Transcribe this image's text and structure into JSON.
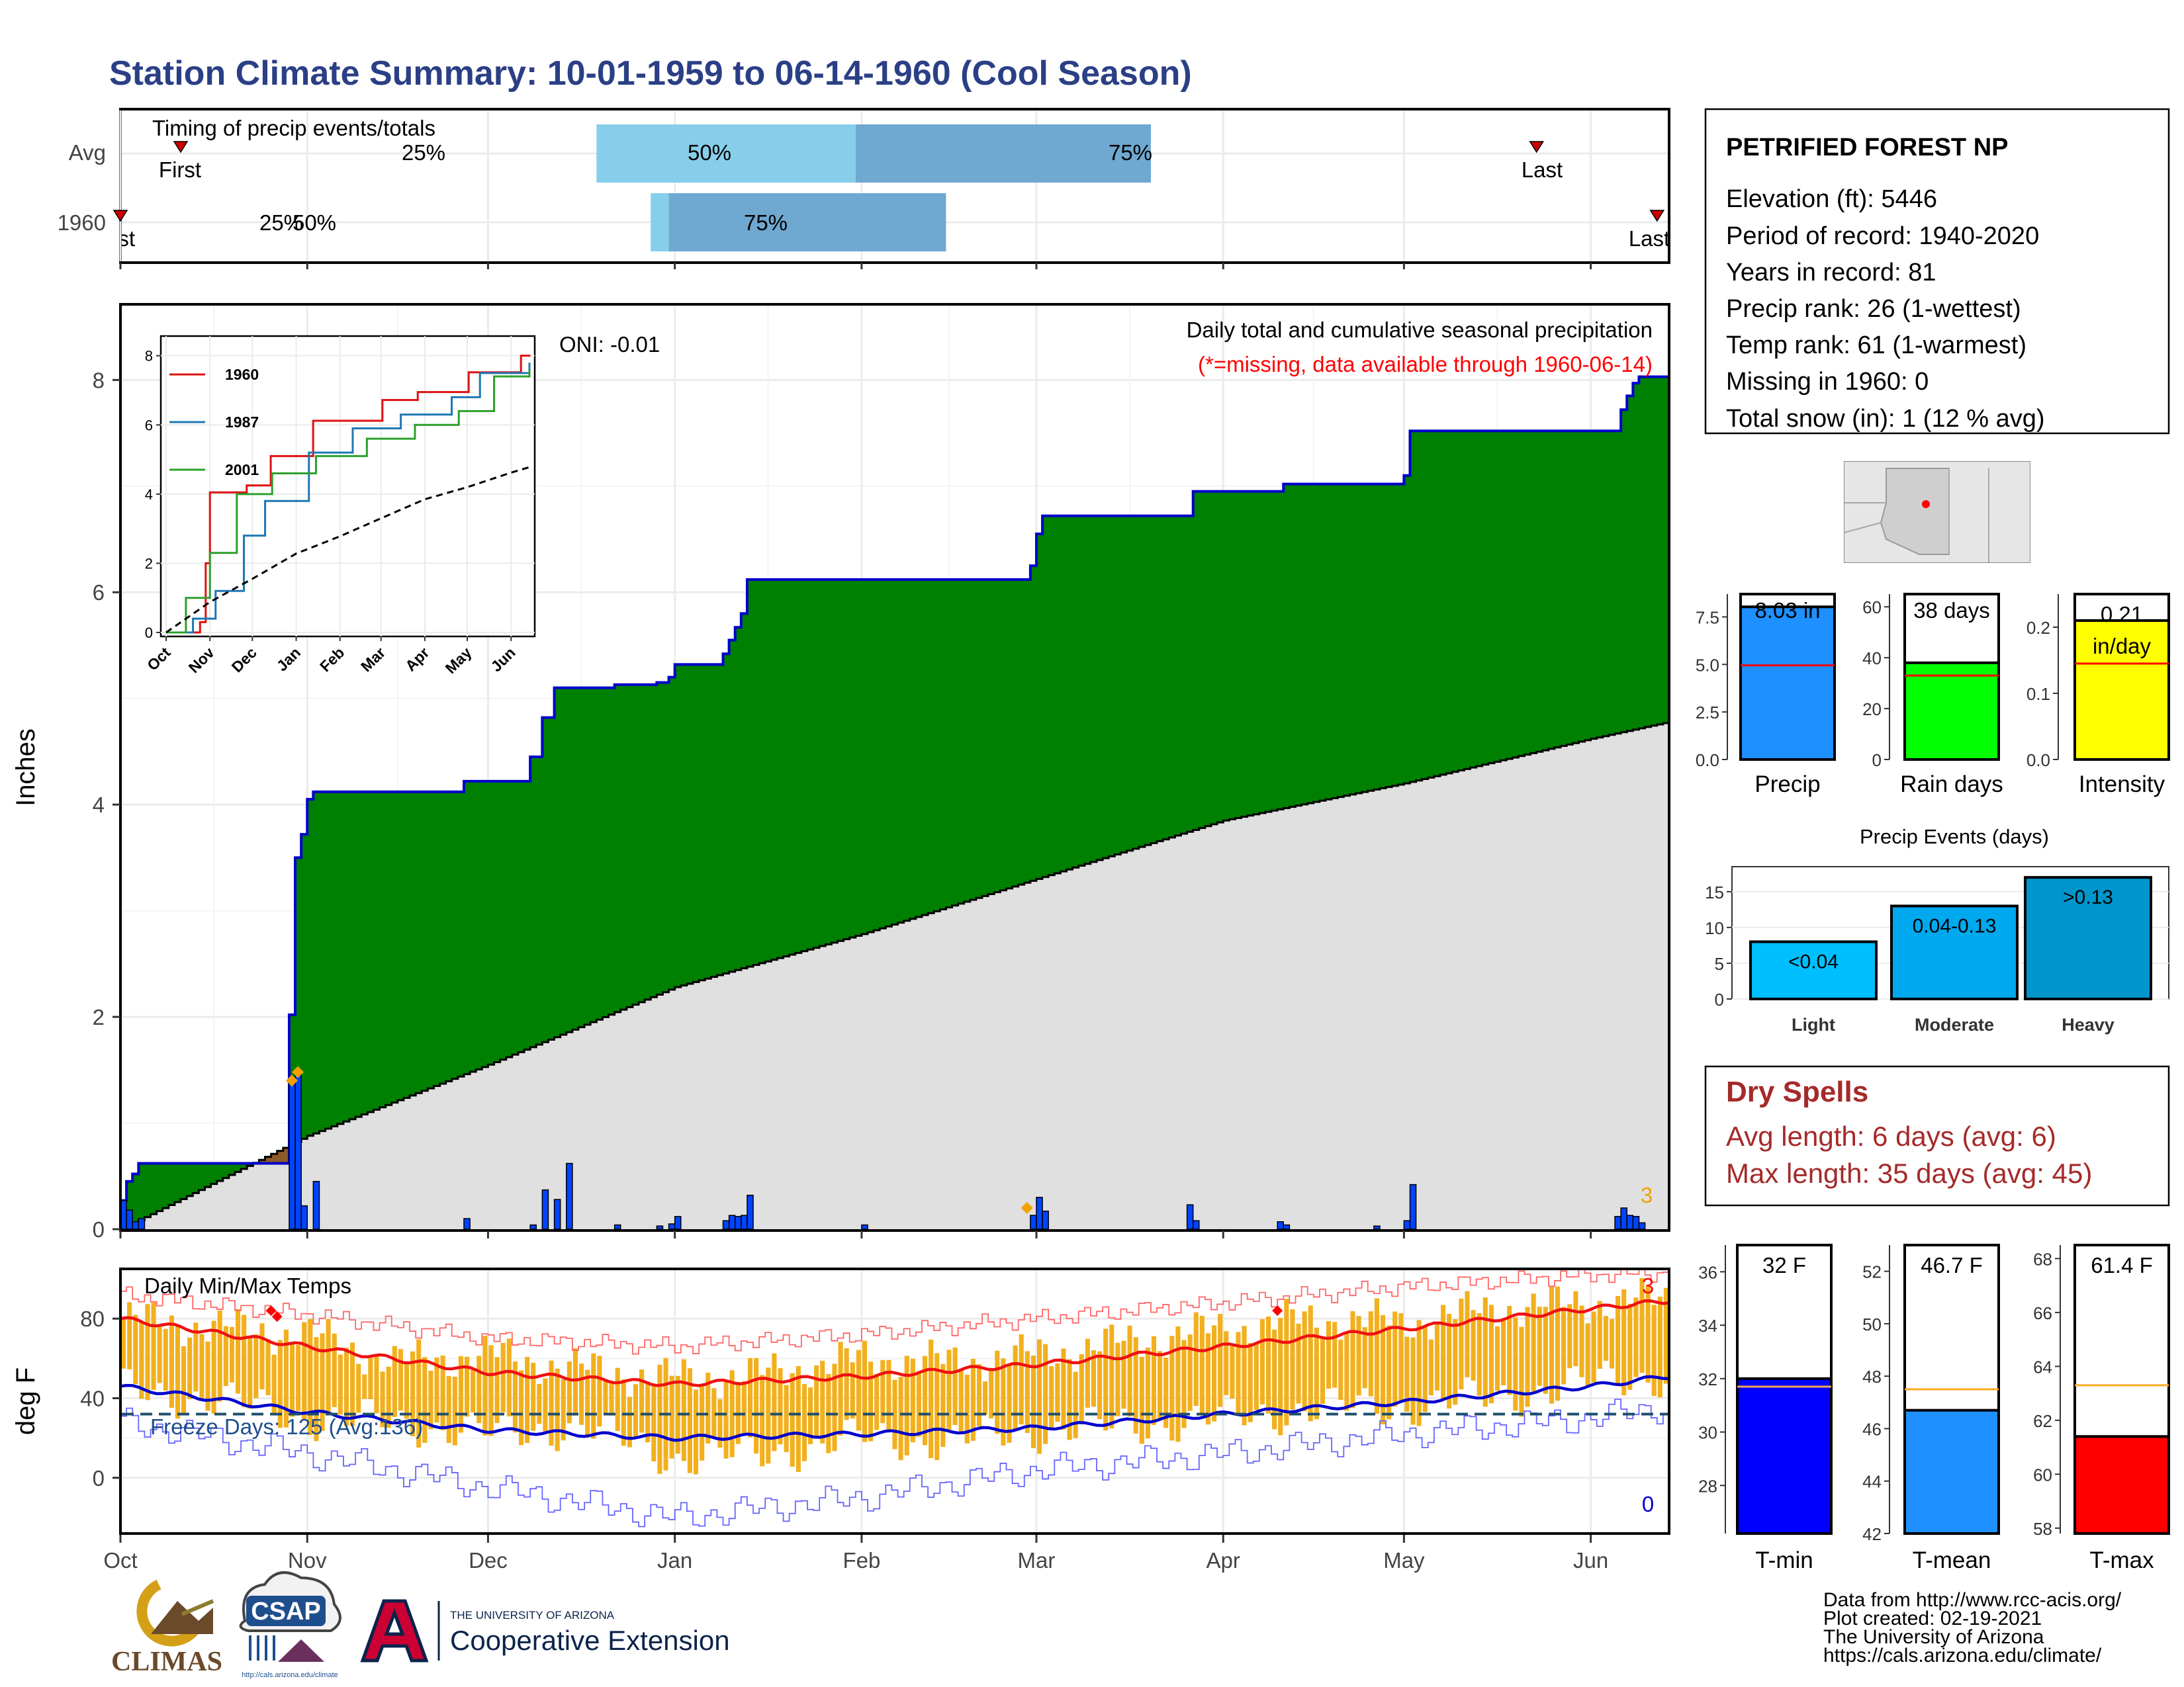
{
  "title": "Station Climate Summary: 10-01-1959 to 06-14-1960 (Cool Season)",
  "colors": {
    "title": "#2a3f85",
    "cum_fill": "#008000",
    "cum_line": "#0000cc",
    "avg_fill": "#e0e0e0",
    "daily_bar": "#0044ff",
    "temp_bar": "#f2b01e",
    "tmax_line": "#ee1111",
    "tmin_line": "#0000cc",
    "dry_spells": "#a52a2a",
    "missing": "#ff0000"
  },
  "timing": {
    "label": "Timing of precip events/totals",
    "rows": [
      "Avg",
      "1960"
    ],
    "avg": {
      "first": "First",
      "last": "Last",
      "q25": "25%",
      "q50": "50%",
      "q75": "75%"
    },
    "y1960": {
      "first": "First",
      "last": "Last",
      "q25": "25%",
      "q50": "50%",
      "q75": "75%"
    }
  },
  "main": {
    "ylabel": "Inches",
    "annotation": "Daily total and cumulative seasonal precipitation",
    "missing_note": "(*=missing, data available through 1960-06-14)",
    "oni": "ONI: -0.01",
    "corner_count": "3"
  },
  "temps": {
    "label": "Daily Min/Max Temps",
    "ylabel": "deg F",
    "freeze": "Freeze Days: 125 (Avg:136)",
    "count_top": "3",
    "count_bottom": "0"
  },
  "station": {
    "name": "PETRIFIED FOREST NP",
    "lines": [
      "Elevation (ft): 5446",
      "Period of record: 1940-2020",
      "Years in record: 81",
      "Precip rank: 26 (1-wettest)",
      "Temp rank: 61 (1-warmest)",
      "Missing in 1960: 0",
      "Total snow (in): 1 (12 % avg)"
    ]
  },
  "dry_spells": {
    "title": "Dry Spells",
    "avg": "Avg length: 6 days (avg: 6)",
    "max": "Max length: 35 days (avg: 45)"
  },
  "events": {
    "title": "Precip Events (days)"
  },
  "footer": {
    "source": "Data from http://www.rcc-acis.org/",
    "created": "Plot created: 02-19-2021",
    "org": "The University of Arizona",
    "url": "https://cals.arizona.edu/climate/"
  },
  "logos": {
    "climas": "CLIMAS",
    "csap": "CSAP",
    "csap_url": "http://cals.arizona.edu/climate",
    "ua_small": "THE UNIVERSITY OF ARIZONA",
    "ua_big": "Cooperative Extension"
  },
  "chart_data": [
    {
      "id": "timing",
      "type": "bar",
      "title": "Timing of precip events/totals",
      "categories": [
        "Avg",
        "1960"
      ],
      "series": [
        {
          "name": "Avg",
          "first": "1959-10-11",
          "q25": "1959-12-19",
          "q50": "1960-01-31",
          "q75": "1960-03-20",
          "last": "1960-05-23"
        },
        {
          "name": "1960",
          "first": "1959-10-01",
          "q25": "1959-12-28",
          "q50": "1959-12-31",
          "q75": "1960-02-15",
          "last": "1960-06-12"
        }
      ]
    },
    {
      "id": "cumulative",
      "type": "area",
      "title": "Daily total and cumulative seasonal precipitation",
      "xlabel": "",
      "ylabel": "Inches",
      "ylim": [
        0,
        8.7
      ],
      "x_ticks": [
        "Oct",
        "Nov",
        "Dec",
        "Jan",
        "Feb",
        "Mar",
        "Apr",
        "May",
        "Jun"
      ],
      "x_tick_dates": [
        "1959-10-01",
        "1959-11-01",
        "1959-12-01",
        "1960-01-01",
        "1960-02-01",
        "1960-03-01",
        "1960-04-01",
        "1960-05-01",
        "1960-06-01"
      ],
      "y_ticks": [
        0,
        2,
        4,
        6,
        8
      ],
      "cumulative": {
        "x": [
          "1959-10-01",
          "1959-10-02",
          "1959-10-03",
          "1959-10-04",
          "1959-10-05",
          "1959-10-29",
          "1959-10-30",
          "1959-10-31",
          "1959-11-01",
          "1959-11-02",
          "1959-11-24",
          "1959-11-27",
          "1959-12-08",
          "1959-12-10",
          "1959-12-12",
          "1959-12-14",
          "1959-12-22",
          "1959-12-29",
          "1959-12-31",
          "1960-01-01",
          "1960-01-09",
          "1960-01-10",
          "1960-01-11",
          "1960-01-12",
          "1960-01-13",
          "1960-02-01",
          "1960-02-29",
          "1960-03-01",
          "1960-03-02",
          "1960-03-26",
          "1960-03-27",
          "1960-04-10",
          "1960-04-11",
          "1960-04-26",
          "1960-05-01",
          "1960-05-02",
          "1960-06-05",
          "1960-06-06",
          "1960-06-07",
          "1960-06-08",
          "1960-06-09",
          "1960-06-14"
        ],
        "y": [
          0.27,
          0.45,
          0.52,
          0.62,
          0.62,
          2.02,
          3.5,
          3.72,
          4.05,
          4.12,
          4.12,
          4.22,
          4.45,
          4.82,
          5.1,
          5.1,
          5.13,
          5.15,
          5.2,
          5.32,
          5.42,
          5.55,
          5.67,
          5.8,
          6.12,
          6.12,
          6.25,
          6.55,
          6.72,
          6.72,
          6.95,
          6.95,
          7.02,
          7.02,
          7.1,
          7.52,
          7.52,
          7.72,
          7.85,
          7.97,
          8.03,
          8.03
        ]
      },
      "avg_cumulative": {
        "x": [
          "1959-10-01",
          "1959-11-01",
          "1959-12-01",
          "1960-01-01",
          "1960-02-01",
          "1960-03-01",
          "1960-04-01",
          "1960-05-01",
          "1960-06-01",
          "1960-06-14"
        ],
        "y": [
          0.0,
          0.88,
          1.55,
          2.28,
          2.78,
          3.3,
          3.85,
          4.2,
          4.62,
          4.78
        ]
      },
      "daily": {
        "x": [
          "1959-10-01",
          "1959-10-02",
          "1959-10-03",
          "1959-10-04",
          "1959-10-29",
          "1959-10-30",
          "1959-10-31",
          "1959-11-02",
          "1959-11-27",
          "1959-12-08",
          "1959-12-10",
          "1959-12-12",
          "1959-12-14",
          "1959-12-22",
          "1959-12-29",
          "1959-12-31",
          "1960-01-01",
          "1960-01-09",
          "1960-01-10",
          "1960-01-11",
          "1960-01-12",
          "1960-01-13",
          "1960-02-01",
          "1960-02-29",
          "1960-03-01",
          "1960-03-02",
          "1960-03-26",
          "1960-03-27",
          "1960-04-10",
          "1960-04-11",
          "1960-04-26",
          "1960-05-01",
          "1960-05-02",
          "1960-06-05",
          "1960-06-06",
          "1960-06-07",
          "1960-06-08",
          "1960-06-09"
        ],
        "y": [
          0.27,
          0.18,
          0.07,
          0.1,
          1.4,
          1.48,
          0.22,
          0.45,
          0.1,
          0.04,
          0.37,
          0.28,
          0.62,
          0.04,
          0.03,
          0.05,
          0.12,
          0.08,
          0.13,
          0.12,
          0.13,
          0.32,
          0.04,
          0.13,
          0.3,
          0.17,
          0.23,
          0.08,
          0.07,
          0.04,
          0.03,
          0.08,
          0.42,
          0.12,
          0.2,
          0.13,
          0.12,
          0.06
        ]
      },
      "notes": {
        "oni": "ONI: -0.01"
      }
    },
    {
      "id": "inset",
      "type": "line",
      "title": "",
      "x_ticks": [
        "Oct",
        "Nov",
        "Dec",
        "Jan",
        "Feb",
        "Mar",
        "Apr",
        "May",
        "Jun"
      ],
      "y_ticks": [
        0,
        2,
        4,
        6,
        8
      ],
      "ylim": [
        0,
        8.3
      ],
      "series": [
        {
          "name": "1960",
          "x": [
            "1959-10-01",
            "1959-10-25",
            "1959-10-29",
            "1959-11-01",
            "1959-11-27",
            "1959-12-14",
            "1960-01-13",
            "1960-03-02",
            "1960-03-27",
            "1960-05-02",
            "1960-06-08",
            "1960-06-14"
          ],
          "y": [
            0,
            0.3,
            2.0,
            4.05,
            4.25,
            5.1,
            6.12,
            6.72,
            6.95,
            7.52,
            8.0,
            8.03
          ]
        },
        {
          "name": "1987",
          "x": [
            "1959-10-01",
            "1959-10-20",
            "1959-11-05",
            "1959-11-25",
            "1959-12-10",
            "1960-01-10",
            "1960-02-10",
            "1960-03-15",
            "1960-04-20",
            "1960-05-10",
            "1960-06-14"
          ],
          "y": [
            0,
            0.4,
            1.2,
            2.8,
            3.8,
            5.2,
            5.9,
            6.3,
            6.8,
            7.5,
            7.8
          ]
        },
        {
          "name": "2001",
          "x": [
            "1959-10-01",
            "1959-10-15",
            "1959-11-01",
            "1959-11-20",
            "1959-12-15",
            "1960-01-15",
            "1960-02-20",
            "1960-03-25",
            "1960-04-25",
            "1960-05-20",
            "1960-06-14"
          ],
          "y": [
            0,
            1.0,
            2.3,
            4.0,
            4.6,
            5.1,
            5.6,
            6.0,
            6.4,
            7.4,
            7.6
          ]
        },
        {
          "name": "Average",
          "x": [
            "1959-10-01",
            "1959-11-01",
            "1959-12-01",
            "1960-01-01",
            "1960-02-01",
            "1960-03-01",
            "1960-04-01",
            "1960-05-01",
            "1960-06-01",
            "1960-06-14"
          ],
          "y": [
            0.0,
            0.88,
            1.55,
            2.28,
            2.78,
            3.3,
            3.85,
            4.2,
            4.62,
            4.78
          ]
        }
      ]
    },
    {
      "id": "temps",
      "type": "bar",
      "title": "Daily Min/Max Temps",
      "ylabel": "deg F",
      "ylim": [
        -28,
        105
      ],
      "y_ticks": [
        0,
        40,
        80
      ],
      "x_ticks": [
        "Oct",
        "Nov",
        "Dec",
        "Jan",
        "Feb",
        "Mar",
        "Apr",
        "May",
        "Jun"
      ],
      "tmax_normal": {
        "x": [
          "1959-10-01",
          "1959-11-01",
          "1959-12-01",
          "1960-01-01",
          "1960-02-01",
          "1960-03-01",
          "1960-04-01",
          "1960-05-01",
          "1960-06-01",
          "1960-06-14"
        ],
        "y": [
          80,
          66,
          53,
          47,
          51,
          57,
          66,
          75,
          85,
          89
        ]
      },
      "tmin_normal": {
        "x": [
          "1959-10-01",
          "1959-11-01",
          "1959-12-01",
          "1960-01-01",
          "1960-02-01",
          "1960-03-01",
          "1960-04-01",
          "1960-05-01",
          "1960-06-01",
          "1960-06-14"
        ],
        "y": [
          46,
          33,
          24,
          20,
          22,
          25,
          32,
          38,
          46,
          51
        ]
      },
      "record_high": {
        "x": [
          "1959-10-01",
          "1959-11-01",
          "1959-12-01",
          "1960-01-01",
          "1960-02-01",
          "1960-03-01",
          "1960-04-01",
          "1960-05-01",
          "1960-06-01",
          "1960-06-14"
        ],
        "y": [
          92,
          82,
          70,
          66,
          72,
          80,
          88,
          96,
          102,
          103
        ]
      },
      "record_low": {
        "x": [
          "1959-10-01",
          "1959-11-01",
          "1959-12-01",
          "1960-01-01",
          "1960-02-01",
          "1960-03-01",
          "1960-04-01",
          "1960-05-01",
          "1960-06-01",
          "1960-06-14"
        ],
        "y": [
          28,
          12,
          -5,
          -20,
          -10,
          4,
          12,
          22,
          30,
          36
        ]
      },
      "daily_max": {
        "x": [
          "1959-10-01",
          "1959-10-15",
          "1959-11-01",
          "1959-11-15",
          "1959-12-01",
          "1959-12-15",
          "1960-01-01",
          "1960-01-15",
          "1960-02-01",
          "1960-02-15",
          "1960-03-01",
          "1960-03-15",
          "1960-04-01",
          "1960-04-15",
          "1960-05-01",
          "1960-05-15",
          "1960-06-01",
          "1960-06-14"
        ],
        "y": [
          80,
          76,
          72,
          58,
          62,
          55,
          50,
          52,
          60,
          58,
          62,
          68,
          75,
          80,
          78,
          85,
          88,
          90
        ]
      },
      "daily_min": {
        "x": [
          "1959-10-01",
          "1959-10-15",
          "1959-11-01",
          "1959-11-15",
          "1959-12-01",
          "1959-12-15",
          "1960-01-01",
          "1960-01-15",
          "1960-02-01",
          "1960-02-15",
          "1960-03-01",
          "1960-03-15",
          "1960-04-01",
          "1960-04-15",
          "1960-05-01",
          "1960-05-15",
          "1960-06-01",
          "1960-06-14"
        ],
        "y": [
          44,
          40,
          30,
          28,
          22,
          26,
          10,
          12,
          20,
          18,
          24,
          26,
          30,
          35,
          36,
          40,
          48,
          52
        ]
      },
      "freeze_threshold": 32,
      "freeze_days": 125
    },
    {
      "id": "precip_total",
      "type": "bar",
      "categories": [
        "Precip"
      ],
      "values": [
        8.03
      ],
      "average": 4.95,
      "value_label": "8.03 in",
      "ylim": [
        0,
        8.7
      ],
      "y_ticks": [
        0.0,
        2.5,
        5.0,
        7.5
      ],
      "color": "#1e90ff"
    },
    {
      "id": "rain_days",
      "type": "bar",
      "categories": [
        "Rain days"
      ],
      "values": [
        38
      ],
      "average": 33,
      "value_label": "38 days",
      "ylim": [
        0,
        65
      ],
      "y_ticks": [
        0,
        20,
        40,
        60
      ],
      "color": "#00ff00"
    },
    {
      "id": "intensity",
      "type": "bar",
      "categories": [
        "Intensity"
      ],
      "values": [
        0.21
      ],
      "average": 0.145,
      "value_label": "0.21",
      "unit_label": "in/day",
      "ylim": [
        0,
        0.25
      ],
      "y_ticks": [
        0.0,
        0.1,
        0.2
      ],
      "color": "#ffff00"
    },
    {
      "id": "precip_events",
      "type": "bar",
      "title": "Precip Events (days)",
      "categories": [
        "Light",
        "Moderate",
        "Heavy"
      ],
      "values": [
        8,
        13,
        17
      ],
      "bar_labels": [
        "<0.04",
        "0.04-0.13",
        ">0.13"
      ],
      "ylim": [
        0,
        18.5
      ],
      "y_ticks": [
        0,
        5,
        10,
        15
      ],
      "colors": [
        "#00bfff",
        "#00a8ee",
        "#0096cc"
      ]
    },
    {
      "id": "tmin_box",
      "type": "bar",
      "categories": [
        "T-min"
      ],
      "values": [
        32
      ],
      "average": 31.7,
      "value_label": "32 F",
      "ylim": [
        26.2,
        37
      ],
      "y_ticks": [
        28,
        30,
        32,
        34,
        36
      ],
      "color": "#0000ff"
    },
    {
      "id": "tmean_box",
      "type": "bar",
      "categories": [
        "T-mean"
      ],
      "values": [
        46.7
      ],
      "average": 47.5,
      "value_label": "46.7 F",
      "ylim": [
        42,
        53
      ],
      "y_ticks": [
        42,
        44,
        46,
        48,
        50,
        52
      ],
      "color": "#1e90ff"
    },
    {
      "id": "tmax_box",
      "type": "bar",
      "categories": [
        "T-max"
      ],
      "values": [
        61.4
      ],
      "average": 63.3,
      "value_label": "61.4 F",
      "ylim": [
        57.8,
        68.5
      ],
      "y_ticks": [
        58,
        60,
        62,
        64,
        66,
        68
      ],
      "color": "#ff0000"
    }
  ]
}
